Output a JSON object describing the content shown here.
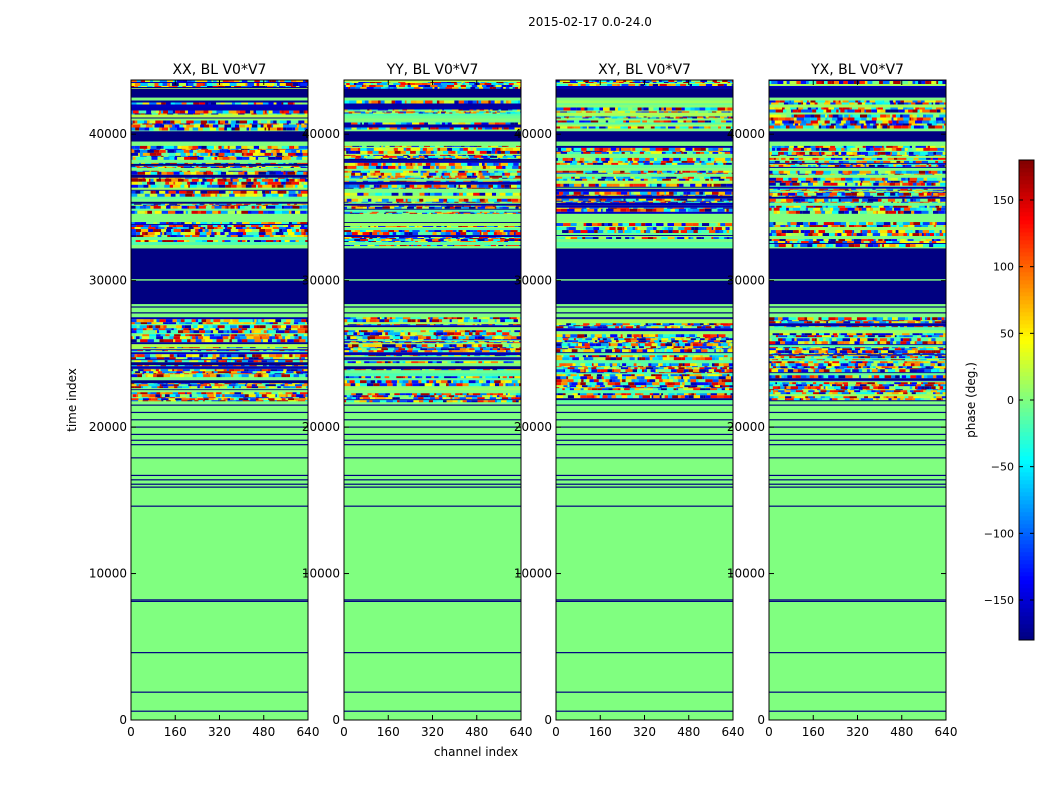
{
  "suptitle": "2015-02-17 0.0-24.0",
  "xlabel": "channel index",
  "ylabel": "time index",
  "colorbar_label": "phase (deg.)",
  "colormap": "jet",
  "chart_data": {
    "type": "heatmap",
    "xlim": [
      0,
      640
    ],
    "ylim": [
      0,
      43700
    ],
    "xticks": [
      "0",
      "160",
      "320",
      "480",
      "640"
    ],
    "yticks": [
      "0",
      "10000",
      "20000",
      "30000",
      "40000"
    ],
    "clim": [
      -180,
      180
    ],
    "colorbar_ticks": [
      "−150",
      "−100",
      "−50",
      "0",
      "50",
      "100",
      "150"
    ],
    "panels": [
      {
        "title": "XX, BL V0*V7"
      },
      {
        "title": "YY, BL V0*V7"
      },
      {
        "title": "XY, BL V0*V7"
      },
      {
        "title": "YX, BL V0*V7"
      }
    ],
    "background_phase_deg": 0,
    "solid_phase_bands": [
      {
        "y0": 30100,
        "y1": 32200,
        "phase": -180
      },
      {
        "y0": 28400,
        "y1": 30000,
        "phase": -180
      },
      {
        "y0": 39500,
        "y1": 40200,
        "phase": -180
      },
      {
        "y0": 42500,
        "y1": 43100,
        "phase": -180
      }
    ],
    "noisy_phase_bands": [
      {
        "y0": 21800,
        "y1": 27500
      },
      {
        "y0": 34600,
        "y1": 37500
      },
      {
        "y0": 32400,
        "y1": 34000
      },
      {
        "y0": 37700,
        "y1": 39200
      },
      {
        "y0": 40400,
        "y1": 42300
      },
      {
        "y0": 43100,
        "y1": 43700
      }
    ],
    "flag_lines_time_index": [
      600,
      1900,
      4600,
      8100,
      8200,
      14600,
      15900,
      16100,
      16400,
      16700,
      17900,
      18800,
      19100,
      19500,
      20000,
      20500,
      21000,
      21500,
      27800,
      28200
    ]
  }
}
